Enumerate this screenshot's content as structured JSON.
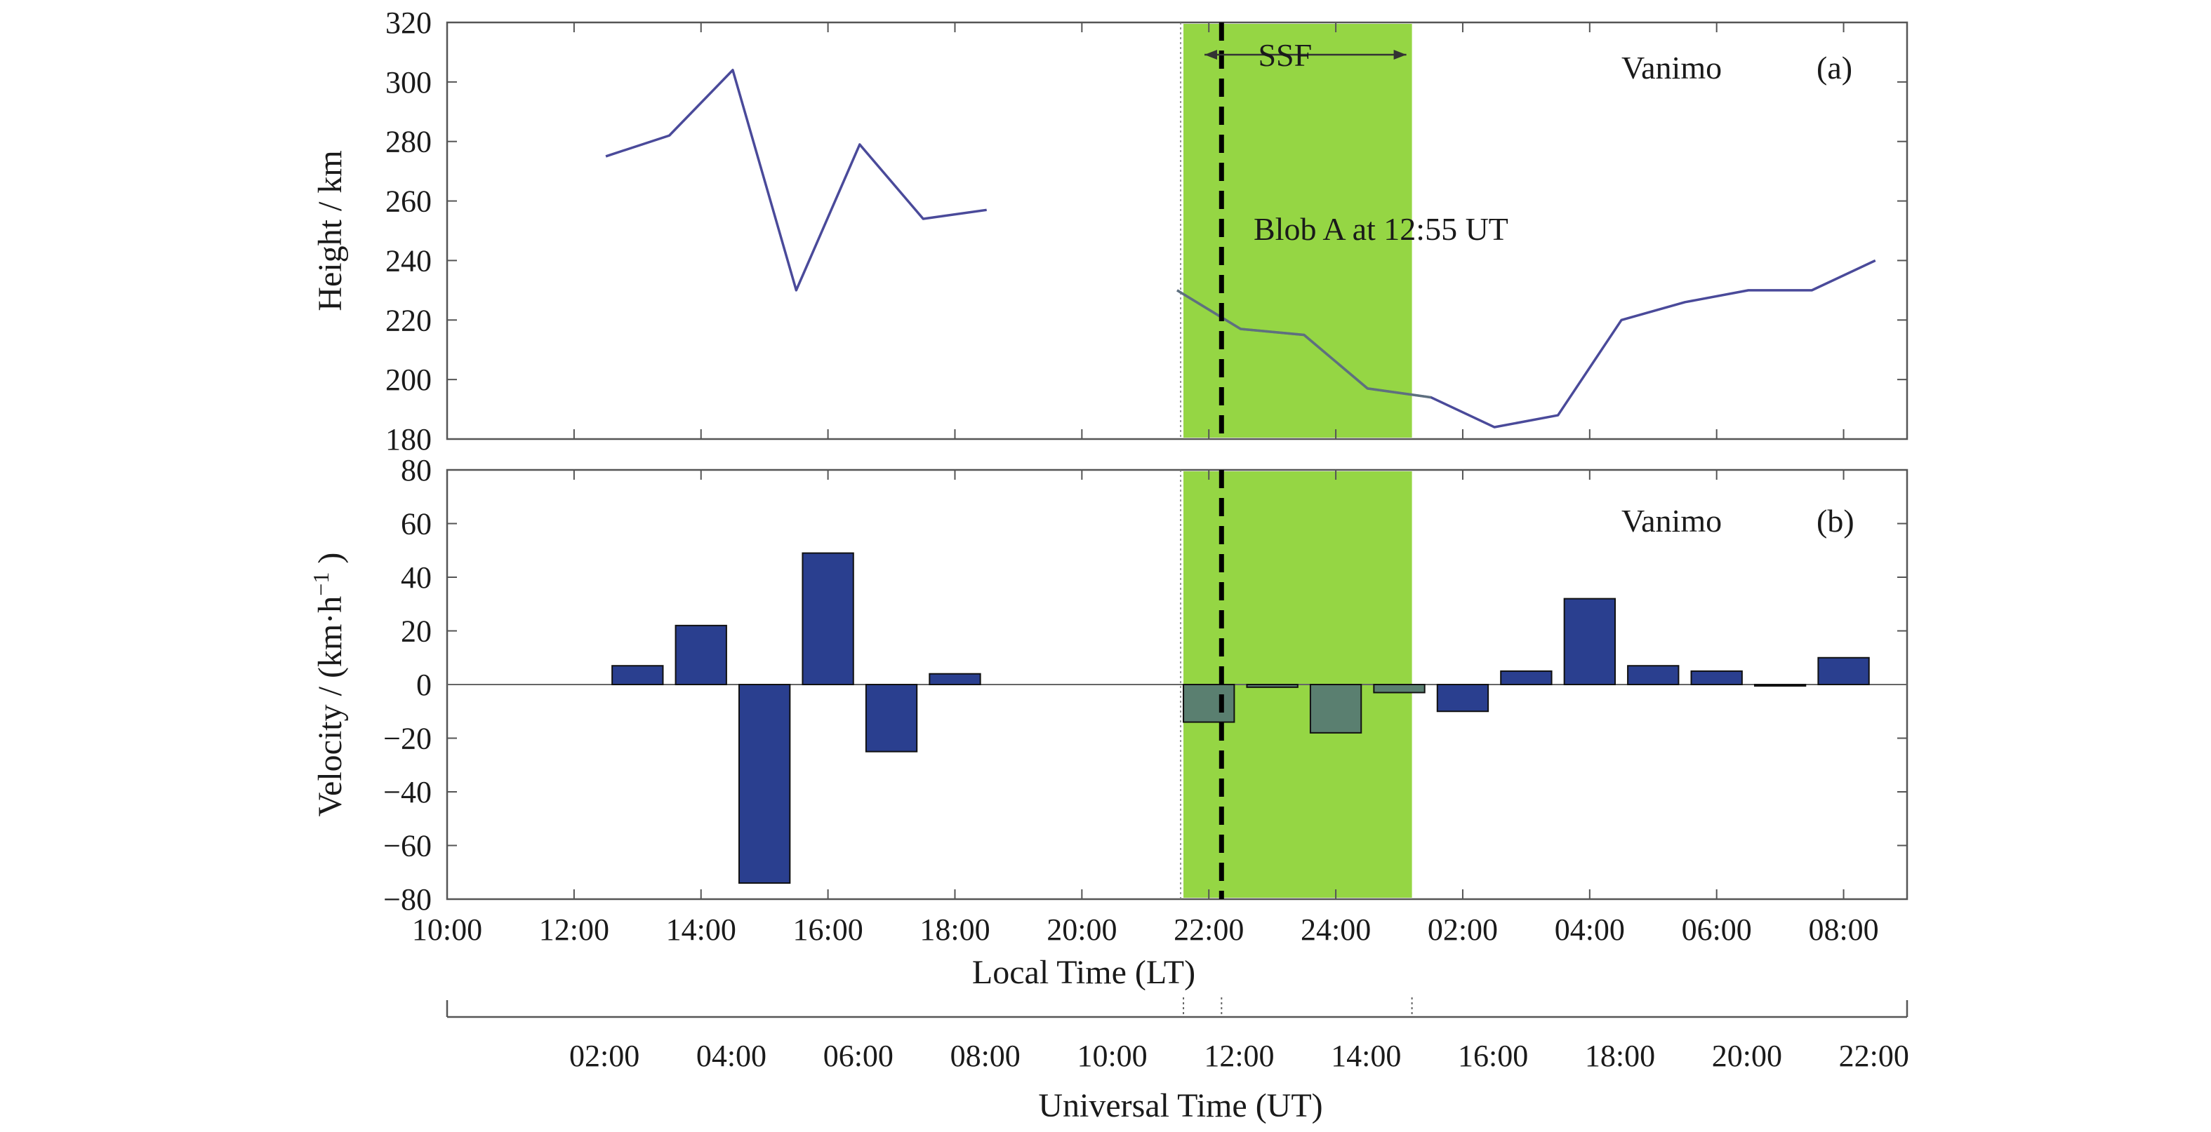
{
  "chart_data": [
    {
      "type": "line",
      "panel_label": "(a)",
      "station": "Vanimo",
      "ylabel": "Height / km",
      "ylim": [
        180,
        320
      ],
      "yticks": [
        "180",
        "200",
        "220",
        "240",
        "260",
        "280",
        "300",
        "320"
      ],
      "x_unit": "hours of local time (10:00 → 34:00 = 10:00 next day)",
      "xlim": [
        10,
        33
      ],
      "ssf_label": "SSF",
      "blob_label": "Blob A at 12:55 UT",
      "series": [
        {
          "segment": 1,
          "x": [
            12.5,
            13.5,
            14.5,
            15.5,
            16.5,
            17.5,
            18.5
          ],
          "y": [
            275,
            282,
            304,
            230,
            279,
            254,
            257
          ]
        },
        {
          "segment": 2,
          "x": [
            21.5,
            22.5,
            23.5,
            24.5,
            25.5,
            26.5,
            27.5,
            28.5,
            29.5,
            30.5,
            31.5,
            32.5
          ],
          "y": [
            230,
            217,
            215,
            197,
            194,
            184,
            188,
            220,
            226,
            230,
            230,
            240
          ]
        }
      ]
    },
    {
      "type": "bar",
      "panel_label": "(b)",
      "station": "Vanimo",
      "ylabel": "Velocity / (km·h",
      "ylabel_sup": "−1",
      "ylabel_end": " )",
      "ylim": [
        -80,
        80
      ],
      "yticks": [
        "−80",
        "−60",
        "−40",
        "−20",
        "0",
        "20",
        "40",
        "60",
        "80"
      ],
      "xlim": [
        10,
        33
      ],
      "x_hours": [
        13,
        14,
        15,
        16,
        17,
        18,
        22,
        23,
        24,
        25,
        26,
        27,
        28,
        29,
        30,
        31,
        32
      ],
      "values": [
        7,
        22,
        -74,
        49,
        -25,
        4,
        -14,
        -1,
        -18,
        -3,
        -10,
        5,
        32,
        7,
        5,
        0,
        10
      ]
    }
  ],
  "axes": {
    "local_time": {
      "label": "Local Time (LT)",
      "ticks": [
        "10:00",
        "12:00",
        "14:00",
        "16:00",
        "18:00",
        "20:00",
        "22:00",
        "24:00",
        "02:00",
        "04:00",
        "06:00",
        "08:00"
      ]
    },
    "universal_time": {
      "label": "Universal Time (UT)",
      "ticks": [
        "02:00",
        "04:00",
        "06:00",
        "08:00",
        "10:00",
        "12:00",
        "14:00",
        "16:00",
        "18:00",
        "20:00",
        "22:00"
      ]
    }
  },
  "shading": {
    "ssf_start_lt_hours": 21.6,
    "ssf_end_lt_hours": 25.2,
    "blob_lt_hours": 22.2,
    "color": "#8fd43a"
  },
  "colors": {
    "line": "#4a4a9a",
    "bar": "#2a3f8f",
    "frame": "#555555"
  }
}
